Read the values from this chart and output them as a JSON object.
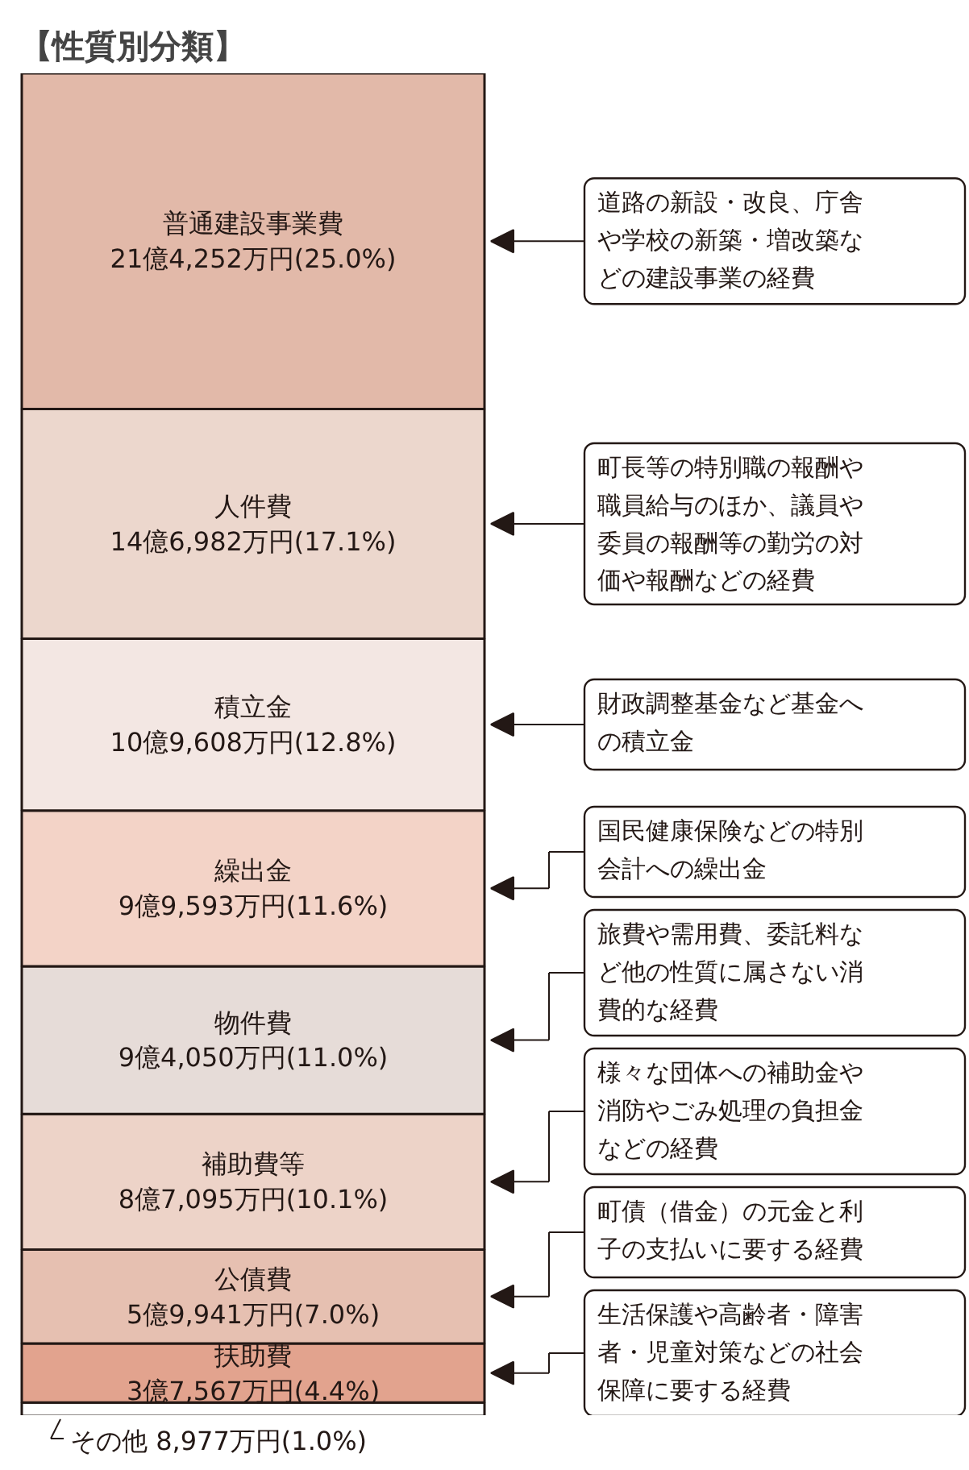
{
  "chart_data": {
    "type": "bar",
    "title": "【性質別分類】",
    "stacked": true,
    "categories": [
      null
    ],
    "ylim": [
      0,
      100
    ],
    "tick_labels": false,
    "grid": false,
    "series": [
      {
        "name": "その他",
        "color": "#ffffff",
        "values": [
          1.0
        ],
        "value_labels": [
          "8,977万円(1.0%)"
        ]
      },
      {
        "name": "扶助費",
        "color": "#e2a38e",
        "values": [
          4.4
        ],
        "value_labels": [
          "3億7,567万円(4.4%)"
        ]
      },
      {
        "name": "公債費",
        "color": "#e6c0b1",
        "values": [
          7.0
        ],
        "value_labels": [
          "5億9,941万円(7.0%)"
        ]
      },
      {
        "name": "補助費等",
        "color": "#edd3c8",
        "values": [
          10.1
        ],
        "value_labels": [
          "8億7,095万円(10.1%)"
        ]
      },
      {
        "name": "物件費",
        "color": "#e6dcd8",
        "values": [
          11.0
        ],
        "value_labels": [
          "9億4,050万円(11.0%)"
        ]
      },
      {
        "name": "繰出金",
        "color": "#f3d3c7",
        "values": [
          11.6
        ],
        "value_labels": [
          "9億9,593万円(11.6%)"
        ]
      },
      {
        "name": "積立金",
        "color": "#f3e7e3",
        "values": [
          12.8
        ],
        "value_labels": [
          "10億9,608万円(12.8%)"
        ]
      },
      {
        "name": "人件費",
        "color": "#ecd7cd",
        "values": [
          17.1
        ],
        "value_labels": [
          "14億6,982万円(17.1%)"
        ]
      },
      {
        "name": "普通建設事業費",
        "color": "#e2b9a9",
        "values": [
          25.0
        ],
        "value_labels": [
          "21億4,252万円(25.0%)"
        ]
      }
    ],
    "annotations": [
      "道路の新設・改良、庁舎や学校の新築・増改築などの建設事業の経費",
      "町長等の特別職の報酬や職員給与のほか、議員や委員の報酬等の勤労の対価や報酬などの経費",
      "財政調整基金など基金への積立金",
      "国民健康保険などの特別会計への繰出金",
      "旅費や需用費、委託料など他の性質に属さない消費的な経費",
      "様々な団体への補助金や消防やごみ処理の負担金などの経費",
      "町債（借金）の元金と利子の支払いに要する経費",
      "生活保護や高齢者・障害者・児童対策などの社会保障に要する経費"
    ]
  }
}
